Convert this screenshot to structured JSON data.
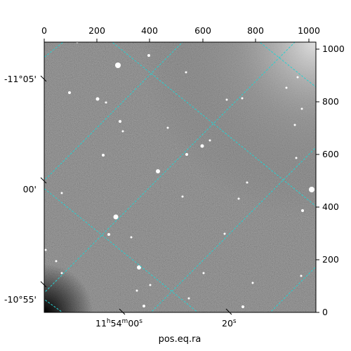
{
  "figure": {
    "xlabel": "pos.eq.ra",
    "top_ticks": [
      "0",
      "200",
      "400",
      "600",
      "800",
      "1000"
    ],
    "right_ticks": [
      "0",
      "200",
      "400",
      "600",
      "800",
      "1000"
    ],
    "left_ticks": [
      "-11°05'",
      "00'",
      "-10°55'"
    ],
    "bottom_ticks": [
      {
        "hm": "11",
        "m": "54",
        "s": "00"
      },
      {
        "s": "20"
      }
    ],
    "grid_color": "#27d1d1",
    "frame_color": "#000000"
  }
}
